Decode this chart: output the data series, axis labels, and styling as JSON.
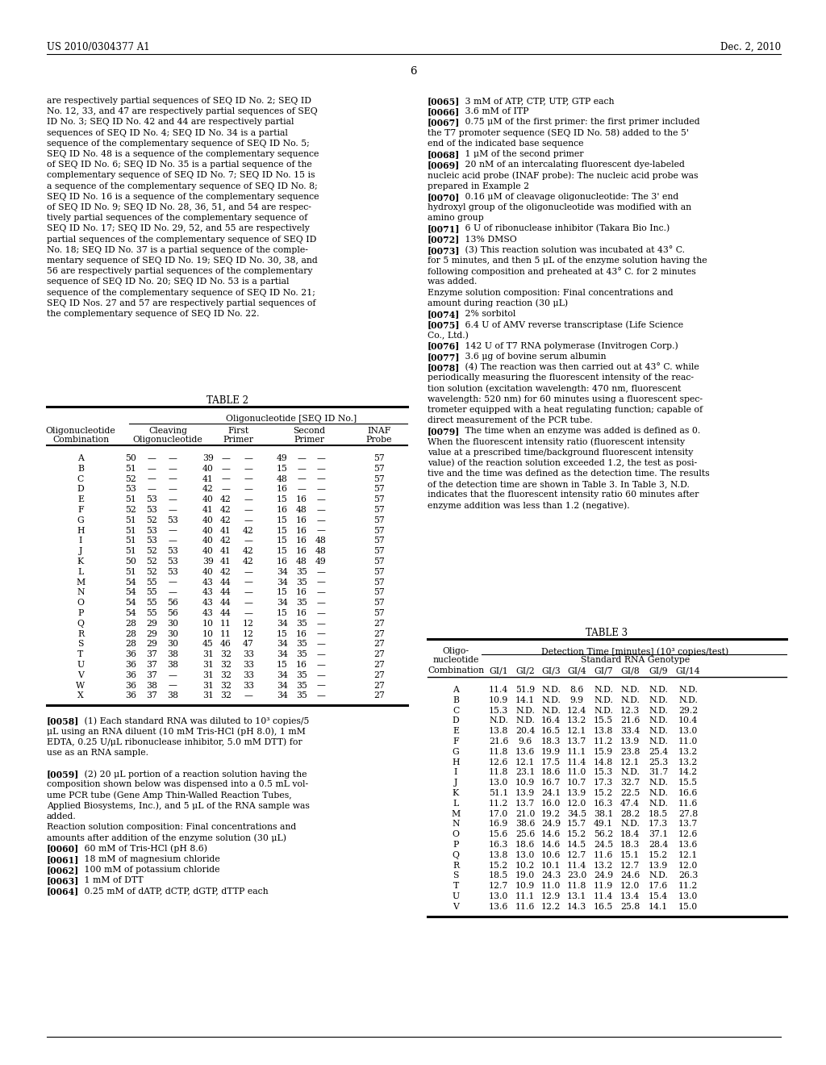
{
  "page_number": "6",
  "header_left": "US 2010/0304377 A1",
  "header_right": "Dec. 2, 2010",
  "background_color": "#ffffff",
  "left_column_text": [
    "are respectively partial sequences of SEQ ID No. 2; SEQ ID",
    "No. 12, 33, and 47 are respectively partial sequences of SEQ",
    "ID No. 3; SEQ ID No. 42 and 44 are respectively partial",
    "sequences of SEQ ID No. 4; SEQ ID No. 34 is a partial",
    "sequence of the complementary sequence of SEQ ID No. 5;",
    "SEQ ID No. 48 is a sequence of the complementary sequence",
    "of SEQ ID No. 6; SEQ ID No. 35 is a partial sequence of the",
    "complementary sequence of SEQ ID No. 7; SEQ ID No. 15 is",
    "a sequence of the complementary sequence of SEQ ID No. 8;",
    "SEQ ID No. 16 is a sequence of the complementary sequence",
    "of SEQ ID No. 9; SEQ ID No. 28, 36, 51, and 54 are respec-",
    "tively partial sequences of the complementary sequence of",
    "SEQ ID No. 17; SEQ ID No. 29, 52, and 55 are respectively",
    "partial sequences of the complementary sequence of SEQ ID",
    "No. 18; SEQ ID No. 37 is a partial sequence of the comple-",
    "mentary sequence of SEQ ID No. 19; SEQ ID No. 30, 38, and",
    "56 are respectively partial sequences of the complementary",
    "sequence of SEQ ID No. 20; SEQ ID No. 53 is a partial",
    "sequence of the complementary sequence of SEQ ID No. 21;",
    "SEQ ID Nos. 27 and 57 are respectively partial sequences of",
    "the complementary sequence of SEQ ID No. 22."
  ],
  "right_column": [
    {
      "bold": "[0065]",
      "text": "   3 mM of ATP, CTP, UTP, GTP each"
    },
    {
      "bold": "[0066]",
      "text": "   3.6 mM of ITP"
    },
    {
      "bold": "[0067]",
      "text": "   0.75 μM of the first primer: the first primer included"
    },
    {
      "bold": "",
      "text": "the T7 promoter sequence (SEQ ID No. 58) added to the 5'"
    },
    {
      "bold": "",
      "text": "end of the indicated base sequence"
    },
    {
      "bold": "[0068]",
      "text": "   1 μM of the second primer"
    },
    {
      "bold": "[0069]",
      "text": "   20 nM of an intercalating fluorescent dye-labeled"
    },
    {
      "bold": "",
      "text": "nucleic acid probe (INAF probe): The nucleic acid probe was"
    },
    {
      "bold": "",
      "text": "prepared in Example 2"
    },
    {
      "bold": "[0070]",
      "text": "   0.16 μM of cleavage oligonucleotide: The 3' end"
    },
    {
      "bold": "",
      "text": "hydroxyl group of the oligonucleotide was modified with an"
    },
    {
      "bold": "",
      "text": "amino group"
    },
    {
      "bold": "[0071]",
      "text": "   6 U of ribonuclease inhibitor (Takara Bio Inc.)"
    },
    {
      "bold": "[0072]",
      "text": "   13% DMSO"
    },
    {
      "bold": "[0073]",
      "text": "   (3) This reaction solution was incubated at 43° C."
    },
    {
      "bold": "",
      "text": "for 5 minutes, and then 5 μL of the enzyme solution having the"
    },
    {
      "bold": "",
      "text": "following composition and preheated at 43° C. for 2 minutes"
    },
    {
      "bold": "",
      "text": "was added."
    },
    {
      "bold": "",
      "text": "Enzyme solution composition: Final concentrations and"
    },
    {
      "bold": "",
      "text": "amount during reaction (30 μL)"
    },
    {
      "bold": "[0074]",
      "text": "   2% sorbitol"
    },
    {
      "bold": "[0075]",
      "text": "   6.4 U of AMV reverse transcriptase (Life Science"
    },
    {
      "bold": "",
      "text": "Co., Ltd.)"
    },
    {
      "bold": "[0076]",
      "text": "   142 U of T7 RNA polymerase (Invitrogen Corp.)"
    },
    {
      "bold": "[0077]",
      "text": "   3.6 μg of bovine serum albumin"
    },
    {
      "bold": "[0078]",
      "text": "   (4) The reaction was then carried out at 43° C. while"
    },
    {
      "bold": "",
      "text": "periodically measuring the fluorescent intensity of the reac-"
    },
    {
      "bold": "",
      "text": "tion solution (excitation wavelength: 470 nm, fluorescent"
    },
    {
      "bold": "",
      "text": "wavelength: 520 nm) for 60 minutes using a fluorescent spec-"
    },
    {
      "bold": "",
      "text": "trometer equipped with a heat regulating function; capable of"
    },
    {
      "bold": "",
      "text": "direct measurement of the PCR tube."
    },
    {
      "bold": "[0079]",
      "text": "   The time when an enzyme was added is defined as 0."
    },
    {
      "bold": "",
      "text": "When the fluorescent intensity ratio (fluorescent intensity"
    },
    {
      "bold": "",
      "text": "value at a prescribed time/background fluorescent intensity"
    },
    {
      "bold": "",
      "text": "value) of the reaction solution exceeded 1.2, the test as posi-"
    },
    {
      "bold": "",
      "text": "tive and the time was defined as the detection time. The results"
    },
    {
      "bold": "",
      "text": "of the detection time are shown in Table 3. In Table 3, N.D."
    },
    {
      "bold": "",
      "text": "indicates that the fluorescent intensity ratio 60 minutes after"
    },
    {
      "bold": "",
      "text": "enzyme addition was less than 1.2 (negative)."
    }
  ],
  "table2_title": "TABLE 2",
  "table2_header1": "Oligonucleotide [SEQ ID No.]",
  "table2_col1_header": [
    "Oligonucleotide",
    "Combination"
  ],
  "table2_col2_header": [
    "Cleaving",
    "Oligonucleotide"
  ],
  "table2_col3_header": [
    "First",
    "Primer"
  ],
  "table2_col4_header": [
    "Second",
    "Primer"
  ],
  "table2_col5_header": [
    "INAF",
    "Probe"
  ],
  "table2_rows": [
    [
      "A",
      "50",
      "—",
      "—",
      "39",
      "—",
      "—",
      "49",
      "—",
      "—",
      "57"
    ],
    [
      "B",
      "51",
      "—",
      "—",
      "40",
      "—",
      "—",
      "15",
      "—",
      "—",
      "57"
    ],
    [
      "C",
      "52",
      "—",
      "—",
      "41",
      "—",
      "—",
      "48",
      "—",
      "—",
      "57"
    ],
    [
      "D",
      "53",
      "—",
      "—",
      "42",
      "—",
      "—",
      "16",
      "—",
      "—",
      "57"
    ],
    [
      "E",
      "51",
      "53",
      "—",
      "40",
      "42",
      "—",
      "15",
      "16",
      "—",
      "57"
    ],
    [
      "F",
      "52",
      "53",
      "—",
      "41",
      "42",
      "—",
      "16",
      "48",
      "—",
      "57"
    ],
    [
      "G",
      "51",
      "52",
      "53",
      "40",
      "42",
      "—",
      "15",
      "16",
      "—",
      "57"
    ],
    [
      "H",
      "51",
      "53",
      "—",
      "40",
      "41",
      "42",
      "15",
      "16",
      "—",
      "57"
    ],
    [
      "I",
      "51",
      "53",
      "—",
      "40",
      "42",
      "—",
      "15",
      "16",
      "48",
      "57"
    ],
    [
      "J",
      "51",
      "52",
      "53",
      "40",
      "41",
      "42",
      "15",
      "16",
      "48",
      "57"
    ],
    [
      "K",
      "50",
      "52",
      "53",
      "39",
      "41",
      "42",
      "16",
      "48",
      "49",
      "57"
    ],
    [
      "L",
      "51",
      "52",
      "53",
      "40",
      "42",
      "—",
      "34",
      "35",
      "—",
      "57"
    ],
    [
      "M",
      "54",
      "55",
      "—",
      "43",
      "44",
      "—",
      "34",
      "35",
      "—",
      "57"
    ],
    [
      "N",
      "54",
      "55",
      "—",
      "43",
      "44",
      "—",
      "15",
      "16",
      "—",
      "57"
    ],
    [
      "O",
      "54",
      "55",
      "56",
      "43",
      "44",
      "—",
      "34",
      "35",
      "—",
      "57"
    ],
    [
      "P",
      "54",
      "55",
      "56",
      "43",
      "44",
      "—",
      "15",
      "16",
      "—",
      "57"
    ],
    [
      "Q",
      "28",
      "29",
      "30",
      "10",
      "11",
      "12",
      "34",
      "35",
      "—",
      "27"
    ],
    [
      "R",
      "28",
      "29",
      "30",
      "10",
      "11",
      "12",
      "15",
      "16",
      "—",
      "27"
    ],
    [
      "S",
      "28",
      "29",
      "30",
      "45",
      "46",
      "47",
      "34",
      "35",
      "—",
      "27"
    ],
    [
      "T",
      "36",
      "37",
      "38",
      "31",
      "32",
      "33",
      "34",
      "35",
      "—",
      "27"
    ],
    [
      "U",
      "36",
      "37",
      "38",
      "31",
      "32",
      "33",
      "15",
      "16",
      "—",
      "27"
    ],
    [
      "V",
      "36",
      "37",
      "—",
      "31",
      "32",
      "33",
      "34",
      "35",
      "—",
      "27"
    ],
    [
      "W",
      "36",
      "38",
      "—",
      "31",
      "32",
      "33",
      "34",
      "35",
      "—",
      "27"
    ],
    [
      "X",
      "36",
      "37",
      "38",
      "31",
      "32",
      "—",
      "34",
      "35",
      "—",
      "27"
    ]
  ],
  "bottom_left": [
    {
      "bold": "[0058]",
      "text": "   (1) Each standard RNA was diluted to 10³ copies/5"
    },
    {
      "bold": "",
      "text": "μL using an RNA diluent (10 mM Tris-HCl (pH 8.0), 1 mM"
    },
    {
      "bold": "",
      "text": "EDTA, 0.25 U/μL ribonuclease inhibitor, 5.0 mM DTT) for"
    },
    {
      "bold": "",
      "text": "use as an RNA sample."
    },
    {
      "bold": "",
      "text": ""
    },
    {
      "bold": "[0059]",
      "text": "   (2) 20 μL portion of a reaction solution having the"
    },
    {
      "bold": "",
      "text": "composition shown below was dispensed into a 0.5 mL vol-"
    },
    {
      "bold": "",
      "text": "ume PCR tube (Gene Amp Thin-Walled Reaction Tubes,"
    },
    {
      "bold": "",
      "text": "Applied Biosystems, Inc.), and 5 μL of the RNA sample was"
    },
    {
      "bold": "",
      "text": "added."
    },
    {
      "bold": "",
      "text": "Reaction solution composition: Final concentrations and"
    },
    {
      "bold": "",
      "text": "amounts after addition of the enzyme solution (30 μL)"
    },
    {
      "bold": "[0060]",
      "text": "   60 mM of Tris-HCl (pH 8.6)"
    },
    {
      "bold": "[0061]",
      "text": "   18 mM of magnesium chloride"
    },
    {
      "bold": "[0062]",
      "text": "   100 mM of potassium chloride"
    },
    {
      "bold": "[0063]",
      "text": "   1 mM of DTT"
    },
    {
      "bold": "[0064]",
      "text": "   0.25 mM of dATP, dCTP, dGTP, dTTP each"
    }
  ],
  "table3_title": "TABLE 3",
  "table3_header1": "Detection Time [minutes] (10³ copies/test)",
  "table3_header2": "Standard RNA Genotype",
  "table3_col_headers": [
    "Combination",
    "GI/1",
    "GI/2",
    "GI/3",
    "GI/4",
    "GI/7",
    "GI/8",
    "GI/9",
    "GI/14"
  ],
  "table3_rows": [
    [
      "A",
      "11.4",
      "51.9",
      "N.D.",
      "8.6",
      "N.D.",
      "N.D.",
      "N.D.",
      "N.D."
    ],
    [
      "B",
      "10.9",
      "14.1",
      "N.D.",
      "9.9",
      "N.D.",
      "N.D.",
      "N.D.",
      "N.D."
    ],
    [
      "C",
      "15.3",
      "N.D.",
      "N.D.",
      "12.4",
      "N.D.",
      "12.3",
      "N.D.",
      "29.2"
    ],
    [
      "D",
      "N.D.",
      "N.D.",
      "16.4",
      "13.2",
      "15.5",
      "21.6",
      "N.D.",
      "10.4"
    ],
    [
      "E",
      "13.8",
      "20.4",
      "16.5",
      "12.1",
      "13.8",
      "33.4",
      "N.D.",
      "13.0"
    ],
    [
      "F",
      "21.6",
      "9.6",
      "18.3",
      "13.7",
      "11.2",
      "13.9",
      "N.D.",
      "11.0"
    ],
    [
      "G",
      "11.8",
      "13.6",
      "19.9",
      "11.1",
      "15.9",
      "23.8",
      "25.4",
      "13.2"
    ],
    [
      "H",
      "12.6",
      "12.1",
      "17.5",
      "11.4",
      "14.8",
      "12.1",
      "25.3",
      "13.2"
    ],
    [
      "I",
      "11.8",
      "23.1",
      "18.6",
      "11.0",
      "15.3",
      "N.D.",
      "31.7",
      "14.2"
    ],
    [
      "J",
      "13.0",
      "10.9",
      "16.7",
      "10.7",
      "17.3",
      "32.7",
      "N.D.",
      "15.5"
    ],
    [
      "K",
      "51.1",
      "13.9",
      "24.1",
      "13.9",
      "15.2",
      "22.5",
      "N.D.",
      "16.6"
    ],
    [
      "L",
      "11.2",
      "13.7",
      "16.0",
      "12.0",
      "16.3",
      "47.4",
      "N.D.",
      "11.6"
    ],
    [
      "M",
      "17.0",
      "21.0",
      "19.2",
      "34.5",
      "38.1",
      "28.2",
      "18.5",
      "27.8"
    ],
    [
      "N",
      "16.9",
      "38.6",
      "24.9",
      "15.7",
      "49.1",
      "N.D.",
      "17.3",
      "13.7"
    ],
    [
      "O",
      "15.6",
      "25.6",
      "14.6",
      "15.2",
      "56.2",
      "18.4",
      "37.1",
      "12.6"
    ],
    [
      "P",
      "16.3",
      "18.6",
      "14.6",
      "14.5",
      "24.5",
      "18.3",
      "28.4",
      "13.6"
    ],
    [
      "Q",
      "13.8",
      "13.0",
      "10.6",
      "12.7",
      "11.6",
      "15.1",
      "15.2",
      "12.1"
    ],
    [
      "R",
      "15.2",
      "10.2",
      "10.1",
      "11.4",
      "13.2",
      "12.7",
      "13.9",
      "12.0"
    ],
    [
      "S",
      "18.5",
      "19.0",
      "24.3",
      "23.0",
      "24.9",
      "24.6",
      "N.D.",
      "26.3"
    ],
    [
      "T",
      "12.7",
      "10.9",
      "11.0",
      "11.8",
      "11.9",
      "12.0",
      "17.6",
      "11.2"
    ],
    [
      "U",
      "13.0",
      "11.1",
      "12.9",
      "13.1",
      "11.4",
      "13.4",
      "15.4",
      "13.0"
    ],
    [
      "V",
      "13.6",
      "11.6",
      "12.2",
      "14.3",
      "16.5",
      "25.8",
      "14.1",
      "15.0"
    ]
  ]
}
